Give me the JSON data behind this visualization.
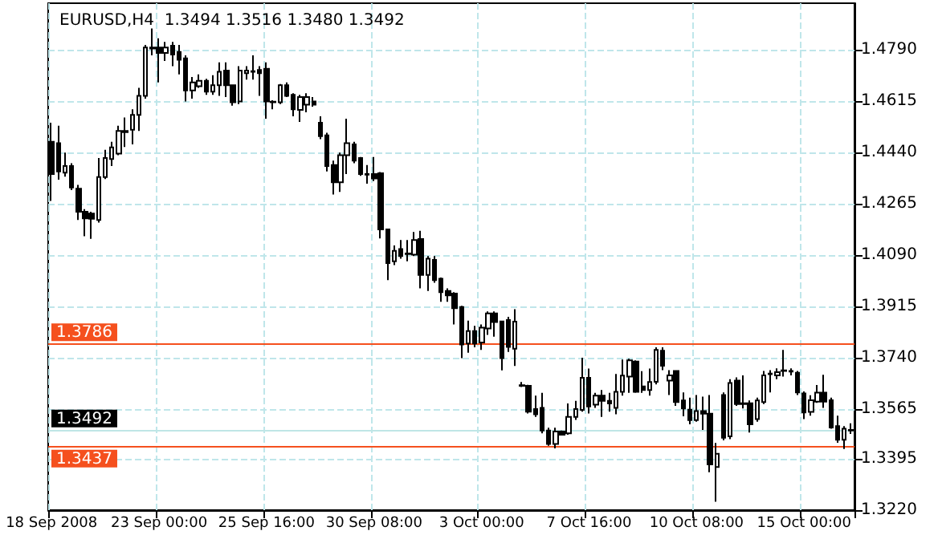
{
  "chart_data": {
    "type": "candlestick",
    "title": "EURUSD,H4  1.3494 1.3516 1.3480 1.3492",
    "color": "#000000",
    "grid": true,
    "categories": [
      "18 Sep 2008",
      null,
      null,
      null,
      null,
      null,
      null,
      null,
      null,
      null,
      null,
      null,
      null,
      null,
      null,
      null,
      "23 Sep 00:00",
      null,
      null,
      null,
      null,
      null,
      null,
      null,
      null,
      null,
      null,
      null,
      null,
      null,
      null,
      null,
      "25 Sep 16:00",
      null,
      null,
      null,
      null,
      null,
      null,
      null,
      null,
      null,
      null,
      null,
      null,
      null,
      null,
      null,
      "30 Sep 08:00",
      null,
      null,
      null,
      null,
      null,
      null,
      null,
      null,
      null,
      null,
      null,
      null,
      null,
      null,
      null,
      "3 Oct 00:00",
      null,
      null,
      null,
      null,
      null,
      null,
      null,
      null,
      null,
      null,
      null,
      null,
      null,
      null,
      null,
      "7 Oct 16:00",
      null,
      null,
      null,
      null,
      null,
      null,
      null,
      null,
      null,
      null,
      null,
      null,
      null,
      null,
      null,
      "10 Oct 08:00",
      null,
      null,
      null,
      null,
      null,
      null,
      null,
      null,
      null,
      null,
      null,
      null,
      null,
      null,
      null,
      "15 Oct 00:00",
      null,
      null,
      null,
      null,
      null,
      null,
      null
    ],
    "ylim": [
      1.322,
      1.495
    ],
    "yticks": [
      {
        "value": 1.479,
        "label": "1.4790"
      },
      1.4615,
      {
        "value": 1.444,
        "label": "1.4440"
      },
      1.4265,
      {
        "value": 1.409,
        "label": "1.4090"
      },
      1.3915,
      {
        "value": 1.374,
        "label": "1.3740"
      },
      1.3565,
      1.3395,
      {
        "value": 1.322,
        "label": "1.3220"
      }
    ],
    "ref_lines": [
      {
        "axis": "y",
        "value": 1.3786,
        "label": "1.3786",
        "color": "#f5501e"
      },
      {
        "axis": "y",
        "value": 1.3437,
        "label": "1.3437",
        "color": "#f5501e"
      },
      {
        "axis": "y",
        "value": 1.3492,
        "label": "1.3492",
        "color": "#bfe6e6"
      }
    ],
    "ohlc": [
      [
        1.4477,
        1.4542,
        1.4275,
        1.4367
      ],
      [
        1.4472,
        1.4532,
        1.4348,
        1.4376
      ],
      [
        1.4372,
        1.444,
        1.4358,
        1.4394
      ],
      [
        1.4394,
        1.4404,
        1.4312,
        1.4321
      ],
      [
        1.4317,
        1.433,
        1.421,
        1.4238
      ],
      [
        1.4238,
        1.4247,
        1.4155,
        1.4216
      ],
      [
        1.4232,
        1.4238,
        1.4146,
        1.4214
      ],
      [
        1.421,
        1.4422,
        1.4201,
        1.4357
      ],
      [
        1.4357,
        1.445,
        1.435,
        1.4422
      ],
      [
        1.4418,
        1.4477,
        1.4394,
        1.4458
      ],
      [
        1.4437,
        1.4532,
        1.4431,
        1.4514
      ],
      [
        1.4514,
        1.456,
        1.4459,
        1.451
      ],
      [
        1.4518,
        1.4588,
        1.4468,
        1.4569
      ],
      [
        1.4569,
        1.4661,
        1.4514,
        1.4634
      ],
      [
        1.4634,
        1.4808,
        1.4624,
        1.4799
      ],
      [
        1.4799,
        1.4864,
        1.4772,
        1.4795
      ],
      [
        1.4799,
        1.483,
        1.468,
        1.478
      ],
      [
        1.478,
        1.4818,
        1.4753,
        1.4799
      ],
      [
        1.4805,
        1.4818,
        1.4735,
        1.4775
      ],
      [
        1.4784,
        1.4808,
        1.4707,
        1.4757
      ],
      [
        1.4762,
        1.4772,
        1.4615,
        1.4652
      ],
      [
        1.4652,
        1.4698,
        1.4624,
        1.468
      ],
      [
        1.4667,
        1.4707,
        1.4661,
        1.4685
      ],
      [
        1.4685,
        1.4692,
        1.4637,
        1.4648
      ],
      [
        1.4648,
        1.4704,
        1.4637,
        1.467
      ],
      [
        1.467,
        1.4748,
        1.4634,
        1.4716
      ],
      [
        1.472,
        1.4748,
        1.463,
        1.467
      ],
      [
        1.467,
        1.467,
        1.46,
        1.4612
      ],
      [
        1.4615,
        1.4735,
        1.4606,
        1.472
      ],
      [
        1.4711,
        1.4735,
        1.4689,
        1.472
      ],
      [
        1.4716,
        1.4772,
        1.4689,
        1.4718
      ],
      [
        1.4722,
        1.4735,
        1.4634,
        1.4711
      ],
      [
        1.4726,
        1.4748,
        1.4556,
        1.4615
      ],
      [
        1.4612,
        1.4619,
        1.4588,
        1.4614
      ],
      [
        1.4612,
        1.4674,
        1.4606,
        1.467
      ],
      [
        1.467,
        1.468,
        1.463,
        1.4634
      ],
      [
        1.4637,
        1.4643,
        1.4564,
        1.4588
      ],
      [
        1.4586,
        1.4637,
        1.4545,
        1.463
      ],
      [
        1.4604,
        1.4643,
        1.4578,
        1.463
      ],
      [
        1.4615,
        1.463,
        1.4597,
        1.4604
      ],
      [
        1.4542,
        1.4564,
        1.4486,
        1.4496
      ],
      [
        1.4499,
        1.4508,
        1.4376,
        1.4394
      ],
      [
        1.4398,
        1.4413,
        1.4297,
        1.4339
      ],
      [
        1.4339,
        1.444,
        1.4306,
        1.4431
      ],
      [
        1.4431,
        1.4556,
        1.4367,
        1.4472
      ],
      [
        1.4468,
        1.4477,
        1.4404,
        1.4413
      ],
      [
        1.4422,
        1.4425,
        1.4361,
        1.4367
      ],
      [
        1.4367,
        1.4398,
        1.4334,
        1.4365
      ],
      [
        1.4367,
        1.4425,
        1.4343,
        1.4352
      ],
      [
        1.437,
        1.4374,
        1.4147,
        1.4178
      ],
      [
        1.4178,
        1.4178,
        1.4005,
        1.4063
      ],
      [
        1.4069,
        1.4123,
        1.4056,
        1.4105
      ],
      [
        1.4111,
        1.4142,
        1.4078,
        1.4087
      ],
      [
        1.4096,
        1.4142,
        1.4069,
        1.4094
      ],
      [
        1.4092,
        1.4169,
        1.4087,
        1.4142
      ],
      [
        1.4145,
        1.4173,
        1.3977,
        1.4023
      ],
      [
        1.4023,
        1.4087,
        1.3968,
        1.4078
      ],
      [
        1.4074,
        1.4087,
        1.3996,
        1.4005
      ],
      [
        1.401,
        1.4014,
        1.3931,
        1.3964
      ],
      [
        1.3968,
        1.3977,
        1.3931,
        1.3953
      ],
      [
        1.3959,
        1.3964,
        1.3854,
        1.3909
      ],
      [
        1.3913,
        1.3917,
        1.3739,
        1.3785
      ],
      [
        1.3789,
        1.3867,
        1.3757,
        1.3831
      ],
      [
        1.3831,
        1.3849,
        1.3776,
        1.3789
      ],
      [
        1.3792,
        1.3854,
        1.3767,
        1.3843
      ],
      [
        1.384,
        1.3898,
        1.3818,
        1.3891
      ],
      [
        1.3891,
        1.3898,
        1.3812,
        1.3862
      ],
      [
        1.3864,
        1.3867,
        1.3697,
        1.3739
      ],
      [
        1.3869,
        1.388,
        1.376,
        1.3777
      ],
      [
        1.3771,
        1.3906,
        1.3712,
        1.3863
      ],
      [
        1.3644,
        1.3657,
        1.364,
        1.3646
      ],
      [
        1.3644,
        1.3648,
        1.355,
        1.3556
      ],
      [
        1.3565,
        1.3611,
        1.3538,
        1.3547
      ],
      [
        1.3569,
        1.362,
        1.3482,
        1.3492
      ],
      [
        1.3492,
        1.3501,
        1.344,
        1.3446
      ],
      [
        1.3446,
        1.3501,
        1.3431,
        1.3488
      ],
      [
        1.3488,
        1.3492,
        1.3477,
        1.3477
      ],
      [
        1.3482,
        1.3584,
        1.3477,
        1.3538
      ],
      [
        1.3538,
        1.3593,
        1.3528,
        1.3565
      ],
      [
        1.3562,
        1.374,
        1.3556,
        1.3672
      ],
      [
        1.3672,
        1.3703,
        1.355,
        1.3574
      ],
      [
        1.358,
        1.362,
        1.3569,
        1.3611
      ],
      [
        1.3611,
        1.363,
        1.3538,
        1.3593
      ],
      [
        1.3593,
        1.362,
        1.3556,
        1.3584
      ],
      [
        1.3569,
        1.3685,
        1.3547,
        1.3624
      ],
      [
        1.3624,
        1.3734,
        1.3611,
        1.3679
      ],
      [
        1.3676,
        1.3737,
        1.362,
        1.3731
      ],
      [
        1.3727,
        1.3731,
        1.362,
        1.3624
      ],
      [
        1.3642,
        1.3694,
        1.362,
        1.363
      ],
      [
        1.363,
        1.3703,
        1.3611,
        1.3657
      ],
      [
        1.3658,
        1.3776,
        1.3649,
        1.3767
      ],
      [
        1.3764,
        1.3776,
        1.3698,
        1.3713
      ],
      [
        1.3662,
        1.3698,
        1.3613,
        1.368
      ],
      [
        1.3695,
        1.3698,
        1.3576,
        1.3589
      ],
      [
        1.3594,
        1.3622,
        1.354,
        1.3567
      ],
      [
        1.3563,
        1.3604,
        1.3513,
        1.3527
      ],
      [
        1.3527,
        1.3613,
        1.3522,
        1.3558
      ],
      [
        1.3558,
        1.3607,
        1.3494,
        1.3549
      ],
      [
        1.3549,
        1.3613,
        1.3349,
        1.3376
      ],
      [
        1.3367,
        1.3449,
        1.3249,
        1.3412
      ],
      [
        1.3613,
        1.3622,
        1.3458,
        1.3467
      ],
      [
        1.3472,
        1.3667,
        1.3462,
        1.3654
      ],
      [
        1.3662,
        1.3673,
        1.3576,
        1.3582
      ],
      [
        1.3585,
        1.368,
        1.3567,
        1.3582
      ],
      [
        1.3585,
        1.3594,
        1.3485,
        1.3513
      ],
      [
        1.3531,
        1.3604,
        1.3522,
        1.3594
      ],
      [
        1.3589,
        1.3695,
        1.3582,
        1.368
      ],
      [
        1.3684,
        1.3698,
        1.3622,
        1.3686
      ],
      [
        1.368,
        1.3704,
        1.3667,
        1.3691
      ],
      [
        1.3695,
        1.3767,
        1.3676,
        1.3697
      ],
      [
        1.3695,
        1.3704,
        1.368,
        1.3693
      ],
      [
        1.3689,
        1.3695,
        1.3613,
        1.3622
      ],
      [
        1.3618,
        1.3625,
        1.3531,
        1.3553
      ],
      [
        1.3555,
        1.3612,
        1.3542,
        1.3595
      ],
      [
        1.359,
        1.3647,
        1.3586,
        1.3621
      ],
      [
        1.3621,
        1.3682,
        1.3569,
        1.359
      ],
      [
        1.3595,
        1.3604,
        1.3498,
        1.3502
      ],
      [
        1.3507,
        1.3542,
        1.345,
        1.346
      ],
      [
        1.346,
        1.3507,
        1.3429,
        1.3498
      ],
      [
        1.3494,
        1.3516,
        1.348,
        1.3492
      ]
    ]
  }
}
